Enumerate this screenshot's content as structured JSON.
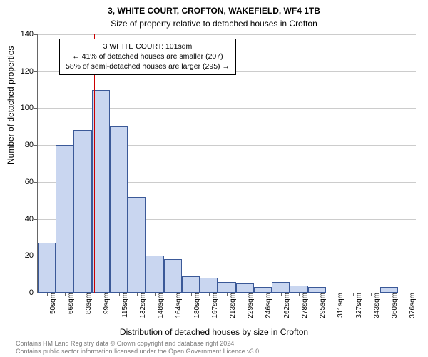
{
  "title": "3, WHITE COURT, CROFTON, WAKEFIELD, WF4 1TB",
  "subtitle": "Size of property relative to detached houses in Crofton",
  "ylabel": "Number of detached properties",
  "xlabel": "Distribution of detached houses by size in Crofton",
  "chart": {
    "type": "histogram",
    "ylim": [
      0,
      140
    ],
    "ytick_step": 20,
    "bar_fill": "#c9d6f0",
    "bar_stroke": "#3b5998",
    "grid_color": "#cccccc",
    "axis_color": "#666666",
    "background_color": "#ffffff",
    "categories": [
      "50sqm",
      "66sqm",
      "83sqm",
      "99sqm",
      "115sqm",
      "132sqm",
      "148sqm",
      "164sqm",
      "180sqm",
      "197sqm",
      "213sqm",
      "229sqm",
      "246sqm",
      "262sqm",
      "278sqm",
      "295sqm",
      "311sqm",
      "327sqm",
      "343sqm",
      "360sqm",
      "376sqm"
    ],
    "values": [
      27,
      80,
      88,
      110,
      90,
      52,
      20,
      18,
      9,
      8,
      6,
      5,
      3,
      6,
      4,
      3,
      0,
      0,
      0,
      3,
      0
    ],
    "bar_width_ratio": 1.0
  },
  "marker": {
    "position_category_index": 3,
    "position_offset": 0.12,
    "color": "#cc0000"
  },
  "annotation": {
    "line1": "3 WHITE COURT: 101sqm",
    "line2": "← 41% of detached houses are smaller (207)",
    "line3": "58% of semi-detached houses are larger (295) →",
    "border_color": "#000000",
    "background_color": "#ffffff",
    "fontsize": 10.5
  },
  "footer": {
    "line1": "Contains HM Land Registry data © Crown copyright and database right 2024.",
    "line2": "Contains public sector information licensed under the Open Government Licence v3.0.",
    "color": "#7a7a7a",
    "fontsize": 9
  }
}
